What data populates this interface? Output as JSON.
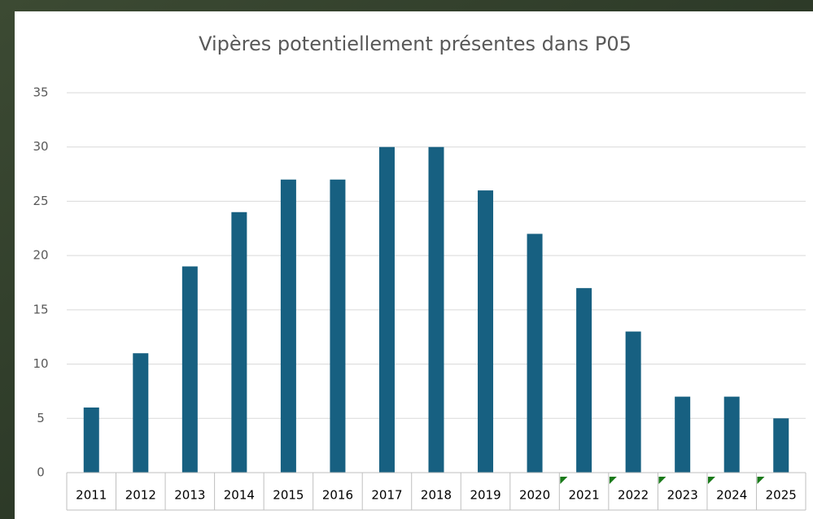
{
  "chart_data": {
    "type": "bar",
    "title": "Vipères potentiellement présentes dans P05",
    "categories": [
      "2011",
      "2012",
      "2013",
      "2014",
      "2015",
      "2016",
      "2017",
      "2018",
      "2019",
      "2020",
      "2021",
      "2022",
      "2023",
      "2024",
      "2025"
    ],
    "values": [
      6,
      11,
      19,
      24,
      27,
      27,
      30,
      30,
      26,
      22,
      17,
      13,
      7,
      7,
      5
    ],
    "color": "#176081",
    "ylim": [
      0,
      35
    ],
    "yticks": [
      0,
      5,
      10,
      15,
      20,
      25,
      30,
      35
    ],
    "grid": true
  }
}
